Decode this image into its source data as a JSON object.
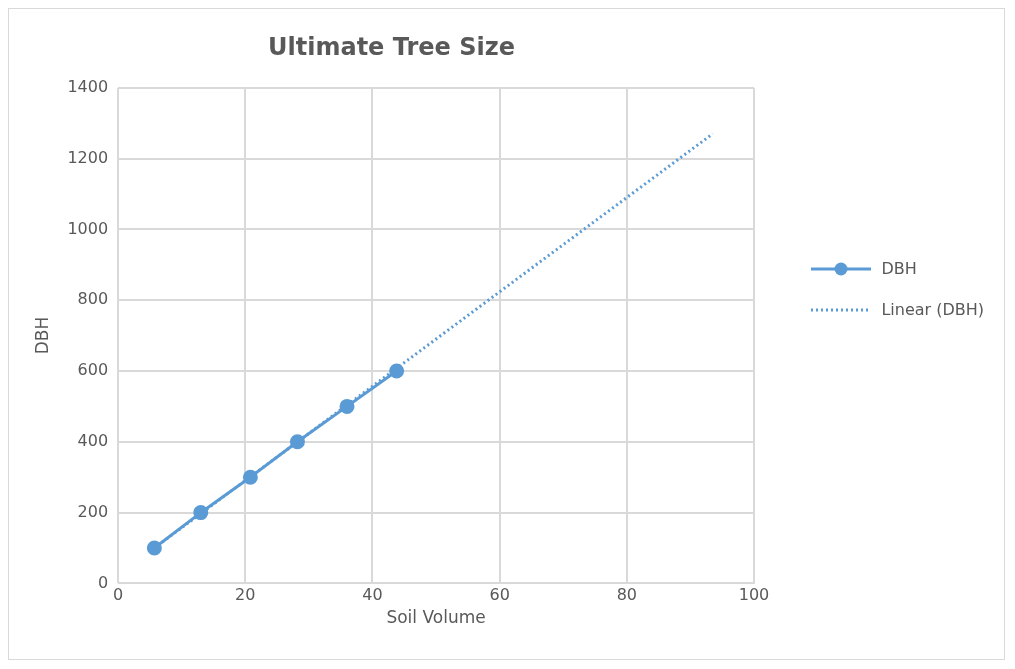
{
  "chart_data": {
    "type": "line",
    "title": "Ultimate Tree Size",
    "xlabel": "Soil Volume",
    "ylabel": "DBH",
    "xlim": [
      0,
      100
    ],
    "xticks": [
      0,
      20,
      40,
      60,
      80,
      100
    ],
    "ylim": [
      0,
      1400
    ],
    "yticks": [
      0,
      200,
      400,
      600,
      800,
      1000,
      1200,
      1400
    ],
    "grid": true,
    "legend": "right",
    "series": [
      {
        "name": "DBH",
        "color": "#5b9bd5",
        "marker": "circle",
        "line_style": "solid",
        "x": [
          5.7,
          13,
          20.8,
          28.2,
          36,
          43.8
        ],
        "values": [
          100,
          200,
          300,
          400,
          500,
          600
        ]
      },
      {
        "name": "Linear (DBH)",
        "color": "#5b9bd5",
        "marker": "none",
        "line_style": "dotted",
        "x": [
          5.7,
          93.5
        ],
        "values": [
          100,
          1270
        ]
      }
    ]
  }
}
